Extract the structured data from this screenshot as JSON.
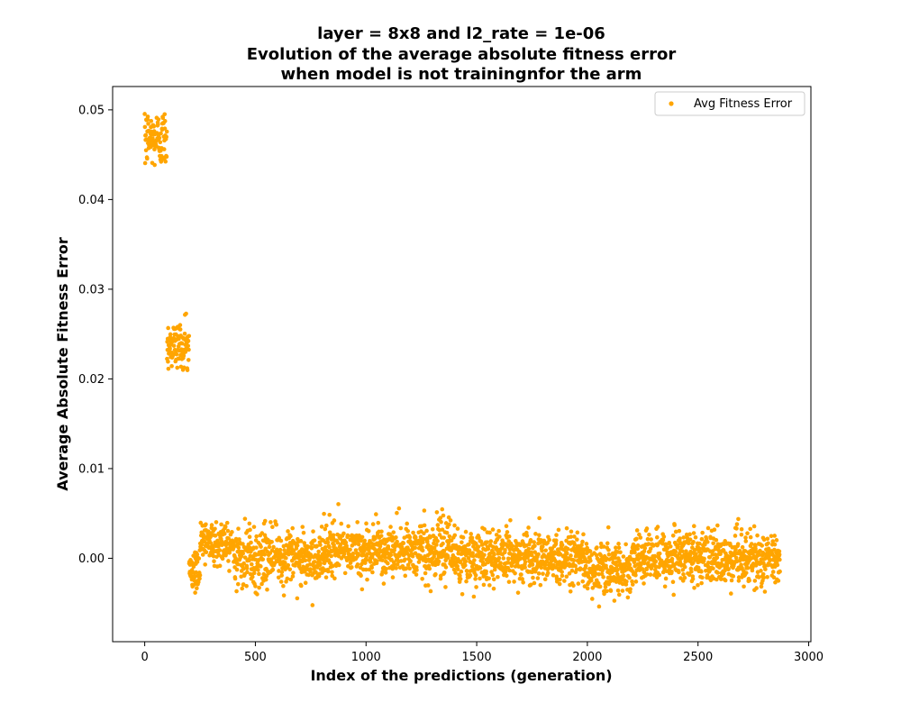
{
  "chart_data": {
    "type": "scatter",
    "title_lines": [
      "layer = 8x8 and l2_rate = 1e-06",
      "Evolution of the average absolute fitness error",
      "when model is not trainingnfor the arm"
    ],
    "xlabel": "Index of the predictions (generation)",
    "ylabel": "Average Absolute Fitness Error",
    "xlim": [
      -145,
      3010
    ],
    "ylim": [
      -0.0093,
      0.0526
    ],
    "xticks": [
      0,
      500,
      1000,
      1500,
      2000,
      2500,
      3000
    ],
    "xtick_labels": [
      "0",
      "500",
      "1000",
      "1500",
      "2000",
      "2500",
      "3000"
    ],
    "yticks": [
      0.0,
      0.01,
      0.02,
      0.03,
      0.04,
      0.05
    ],
    "ytick_labels": [
      "0.00",
      "0.01",
      "0.02",
      "0.03",
      "0.04",
      "0.05"
    ],
    "legend_position": "top-right",
    "grid": false,
    "series": [
      {
        "name": "Avg Fitness Error",
        "color": "#FFA500",
        "segments": [
          {
            "x_start": 0,
            "x_end": 100,
            "y_center": 0.0468,
            "y_spread": 0.0016,
            "y_min": 0.0438,
            "y_max": 0.0498
          },
          {
            "x_start": 101,
            "x_end": 200,
            "y_center": 0.0238,
            "y_spread": 0.0014,
            "y_min": 0.0208,
            "y_max": 0.0273
          },
          {
            "x_start": 201,
            "x_end": 250,
            "y_center": -0.0015,
            "y_spread": 0.0012,
            "y_min": -0.0042,
            "y_max": 0.001
          },
          {
            "x_start": 251,
            "x_end": 400,
            "y_center": 0.0018,
            "y_spread": 0.0013,
            "y_min": -0.002,
            "y_max": 0.0055
          },
          {
            "x_start": 401,
            "x_end": 800,
            "y_center": 0.0002,
            "y_spread": 0.0015,
            "y_min": -0.0055,
            "y_max": 0.0048
          },
          {
            "x_start": 801,
            "x_end": 1400,
            "y_center": 0.0008,
            "y_spread": 0.0015,
            "y_min": -0.0045,
            "y_max": 0.0062
          },
          {
            "x_start": 1401,
            "x_end": 2000,
            "y_center": 0.0001,
            "y_spread": 0.0015,
            "y_min": -0.0055,
            "y_max": 0.0045
          },
          {
            "x_start": 2001,
            "x_end": 2200,
            "y_center": -0.0012,
            "y_spread": 0.0015,
            "y_min": -0.0062,
            "y_max": 0.004
          },
          {
            "x_start": 2201,
            "x_end": 2600,
            "y_center": 0.0001,
            "y_spread": 0.0015,
            "y_min": -0.0048,
            "y_max": 0.0045
          },
          {
            "x_start": 2601,
            "x_end": 2870,
            "y_center": -0.0002,
            "y_spread": 0.0015,
            "y_min": -0.006,
            "y_max": 0.0047
          }
        ]
      }
    ]
  }
}
